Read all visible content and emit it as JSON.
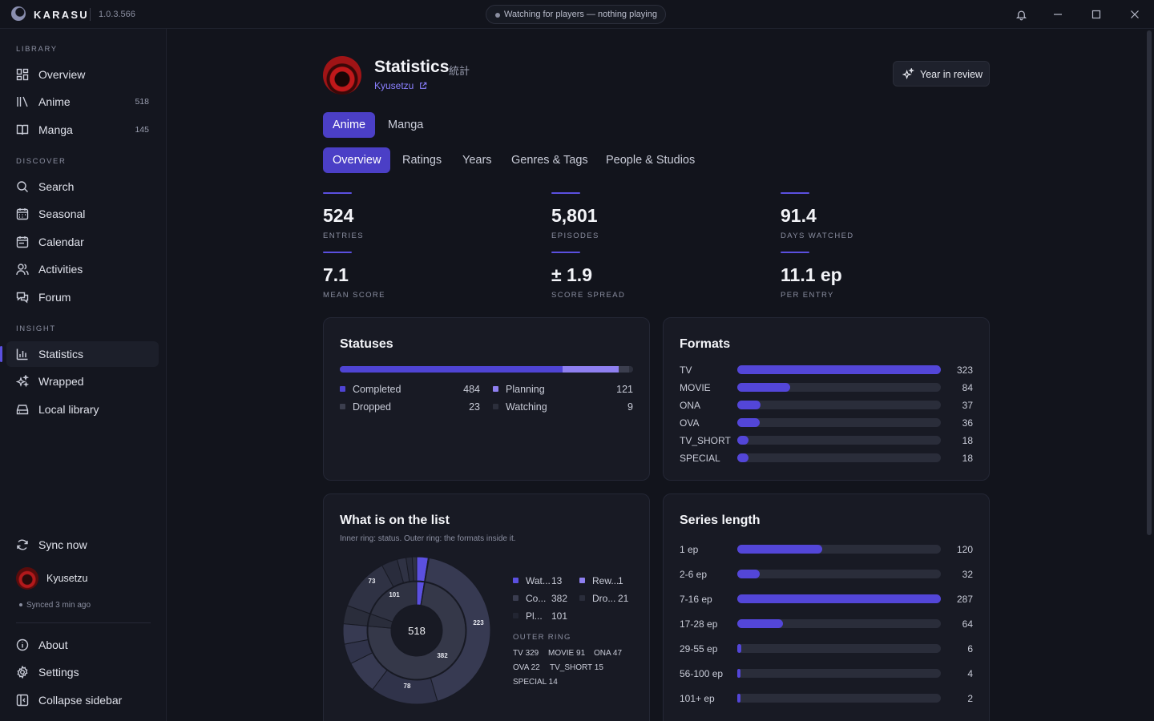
{
  "titlebar": {
    "app_name": "KARASU",
    "version": "1.0.3.566",
    "status": "Watching for players — nothing playing"
  },
  "sidebar": {
    "sections": {
      "library": "LIBRARY",
      "discover": "DISCOVER",
      "insight": "INSIGHT"
    },
    "items": [
      {
        "label": "Overview",
        "icon": "grid-icon"
      },
      {
        "label": "Anime",
        "icon": "library-icon",
        "count": "518"
      },
      {
        "label": "Manga",
        "icon": "book-icon",
        "count": "145"
      },
      {
        "label": "Search",
        "icon": "search-icon"
      },
      {
        "label": "Seasonal",
        "icon": "calendar-grid-icon"
      },
      {
        "label": "Calendar",
        "icon": "calendar-icon"
      },
      {
        "label": "Activities",
        "icon": "users-icon"
      },
      {
        "label": "Forum",
        "icon": "chat-icon"
      },
      {
        "label": "Statistics",
        "icon": "bar-chart-icon",
        "active": true
      },
      {
        "label": "Wrapped",
        "icon": "sparkles-icon"
      },
      {
        "label": "Local library",
        "icon": "drive-icon"
      }
    ],
    "sync": "Sync now",
    "user": "Kyusetzu",
    "synced": "Synced 3 min ago",
    "about": "About",
    "settings": "Settings",
    "collapse": "Collapse sidebar"
  },
  "header": {
    "title": "Statistics",
    "title_jp": "統計",
    "user_link": "Kyusetzu",
    "year_review": "Year in review"
  },
  "media_tabs": [
    "Anime",
    "Manga"
  ],
  "sub_tabs": [
    "Overview",
    "Ratings",
    "Years",
    "Genres & Tags",
    "People & Studios"
  ],
  "stats": [
    {
      "value": "524",
      "label": "ENTRIES"
    },
    {
      "value": "5,801",
      "label": "EPISODES"
    },
    {
      "value": "91.4",
      "label": "DAYS WATCHED"
    },
    {
      "value": "7.1",
      "label": "MEAN SCORE"
    },
    {
      "value": "± 1.9",
      "label": "SCORE SPREAD"
    },
    {
      "value": "11.1 ep",
      "label": "PER ENTRY"
    }
  ],
  "statuses": {
    "title": "Statuses",
    "items": [
      {
        "name": "Completed",
        "value": 484,
        "color": "#4f44d4"
      },
      {
        "name": "Planning",
        "value": 121,
        "color": "#8e7ff0"
      },
      {
        "name": "Dropped",
        "value": 23,
        "color": "#3b3e4e"
      },
      {
        "name": "Watching",
        "value": 9,
        "color": "#2c2f3c"
      }
    ]
  },
  "formats": {
    "title": "Formats",
    "max": 323,
    "items": [
      {
        "name": "TV",
        "value": 323
      },
      {
        "name": "MOVIE",
        "value": 84
      },
      {
        "name": "ONA",
        "value": 37
      },
      {
        "name": "OVA",
        "value": 36
      },
      {
        "name": "TV_SHORT",
        "value": 18
      },
      {
        "name": "SPECIAL",
        "value": 18
      }
    ]
  },
  "on_list": {
    "title": "What is on the list",
    "subtitle": "Inner ring: status. Outer ring: the formats inside it.",
    "center_total": "518",
    "inner": [
      {
        "name": "Wat...",
        "value": 13,
        "color": "#5b50e0"
      },
      {
        "name": "Rew...",
        "value": 1,
        "color": "#8e7ff0"
      },
      {
        "name": "Co...",
        "value": 382,
        "color": "#2e3142"
      },
      {
        "name": "Dro...",
        "value": 21,
        "color": "#24263a"
      },
      {
        "name": "Pl...",
        "value": 101,
        "color": "#1f2230"
      }
    ],
    "ring_labels": [
      "73",
      "101",
      "223",
      "382",
      "78"
    ],
    "outer_title": "OUTER RING",
    "outer": [
      {
        "name": "TV",
        "value": "329"
      },
      {
        "name": "MOVIE",
        "value": "91"
      },
      {
        "name": "ONA",
        "value": "47"
      },
      {
        "name": "OVA",
        "value": "22"
      },
      {
        "name": "TV_SHORT",
        "value": "15"
      },
      {
        "name": "SPECIAL",
        "value": "14"
      }
    ]
  },
  "series_length": {
    "title": "Series length",
    "max": 287,
    "items": [
      {
        "name": "1 ep",
        "value": 120
      },
      {
        "name": "2-6 ep",
        "value": 32
      },
      {
        "name": "7-16 ep",
        "value": 287
      },
      {
        "name": "17-28 ep",
        "value": 64
      },
      {
        "name": "29-55 ep",
        "value": 6
      },
      {
        "name": "56-100 ep",
        "value": 4
      },
      {
        "name": "101+ ep",
        "value": 2
      }
    ]
  }
}
